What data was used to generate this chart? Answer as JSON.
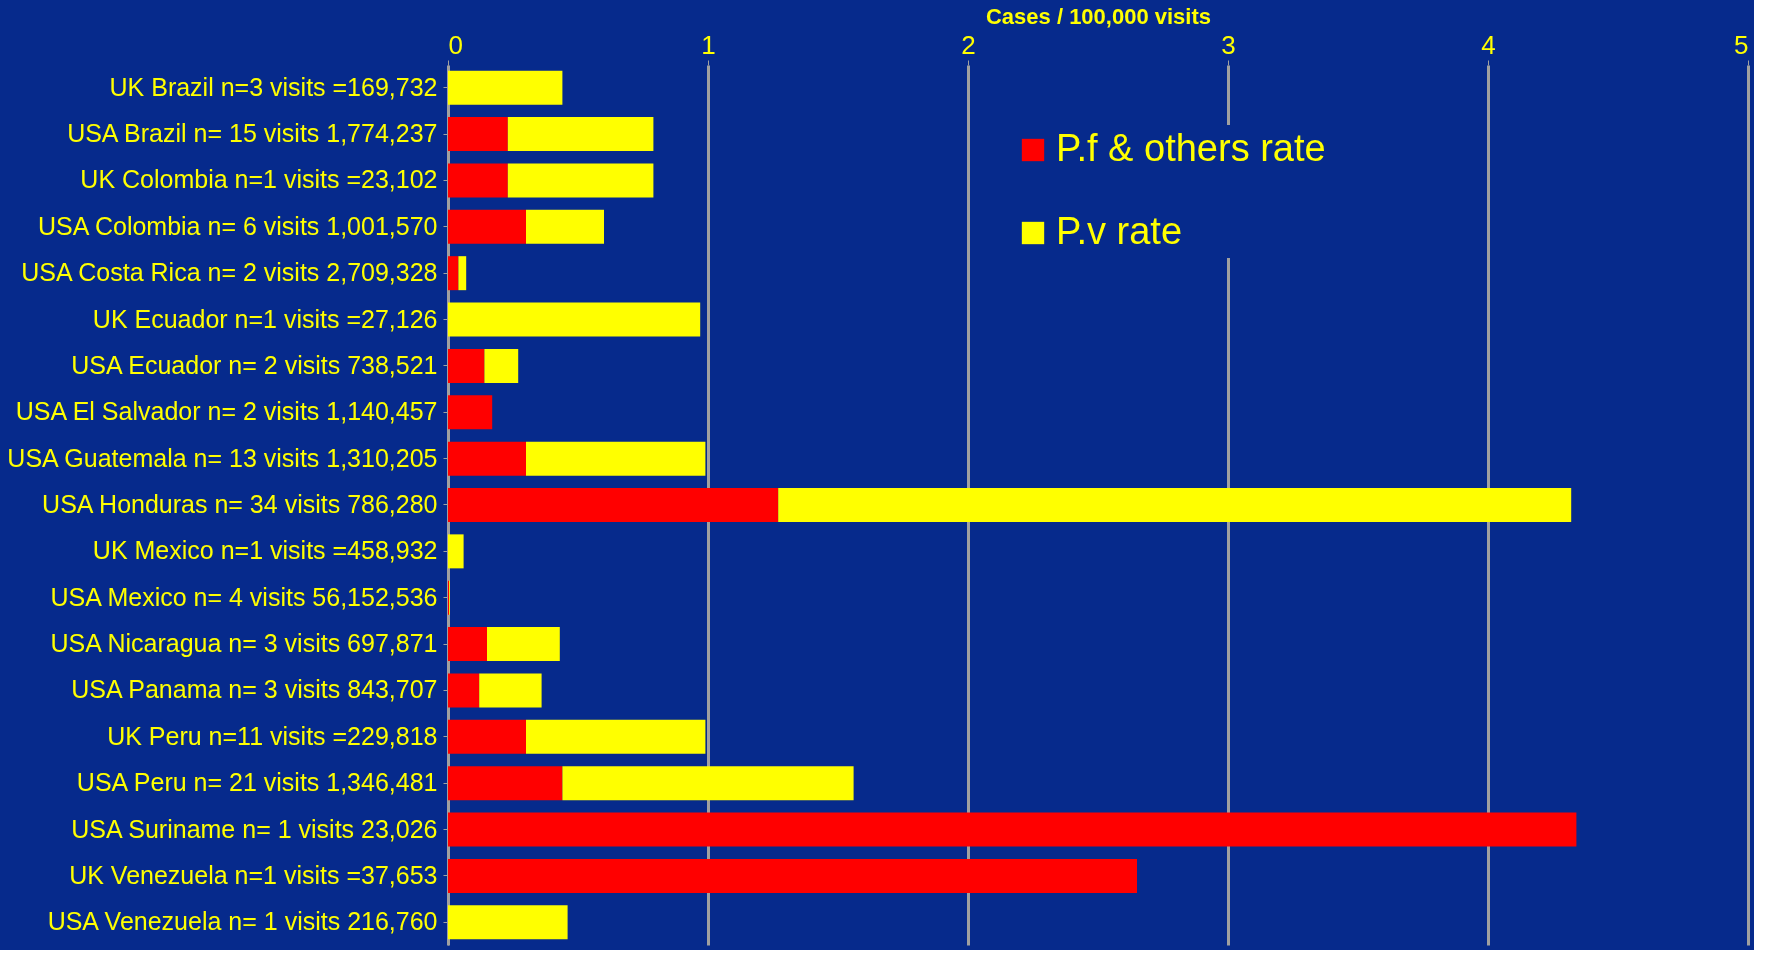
{
  "chart_data": {
    "type": "bar",
    "orientation": "horizontal",
    "stacked": true,
    "xlabel": "Cases / 100,000 visits",
    "categories": [
      "UK Brazil n=3 visits =169,732",
      "USA Brazil n= 15 visits 1,774,237",
      "UK Colombia n=1 visits =23,102",
      "USA Colombia n= 6 visits 1,001,570",
      "USA Costa Rica n= 2 visits 2,709,328",
      "UK Ecuador n=1 visits =27,126",
      "USA Ecuador n= 2 visits 738,521",
      "USA El Salvador n= 2 visits 1,140,457",
      "USA Guatemala n= 13 visits 1,310,205",
      "USA Honduras n= 34 visits 786,280",
      "UK Mexico n=1 visits =458,932",
      "USA Mexico n= 4 visits 56,152,536",
      "USA Nicaragua n= 3 visits 697,871",
      "USA Panama n= 3 visits 843,707",
      "UK Peru n=11 visits =229,818",
      "USA Peru n= 21 visits 1,346,481",
      "USA Suriname n= 1 visits 23,026",
      "UK Venezuela n=1 visits =37,653",
      "USA Venezuela n= 1 visits 216,760"
    ],
    "series": [
      {
        "name": "P.f & others rate",
        "color": "#ff0000",
        "values": [
          0,
          0.23,
          0.23,
          0.3,
          0.04,
          0,
          0.14,
          0.17,
          0.3,
          1.27,
          0,
          0.004,
          0.15,
          0.12,
          0.3,
          0.44,
          4.34,
          2.65,
          0
        ]
      },
      {
        "name": "P.v  rate",
        "color": "#ffff00",
        "values": [
          0.44,
          0.56,
          0.56,
          0.3,
          0.03,
          0.97,
          0.13,
          0,
          0.69,
          3.05,
          0.06,
          0.003,
          0.28,
          0.24,
          0.69,
          1.12,
          0,
          0,
          0.46
        ]
      }
    ],
    "xlim": [
      0,
      5
    ],
    "xticks": [
      0,
      1,
      2,
      3,
      4,
      5
    ],
    "grid": "x",
    "legend": "top right"
  }
}
